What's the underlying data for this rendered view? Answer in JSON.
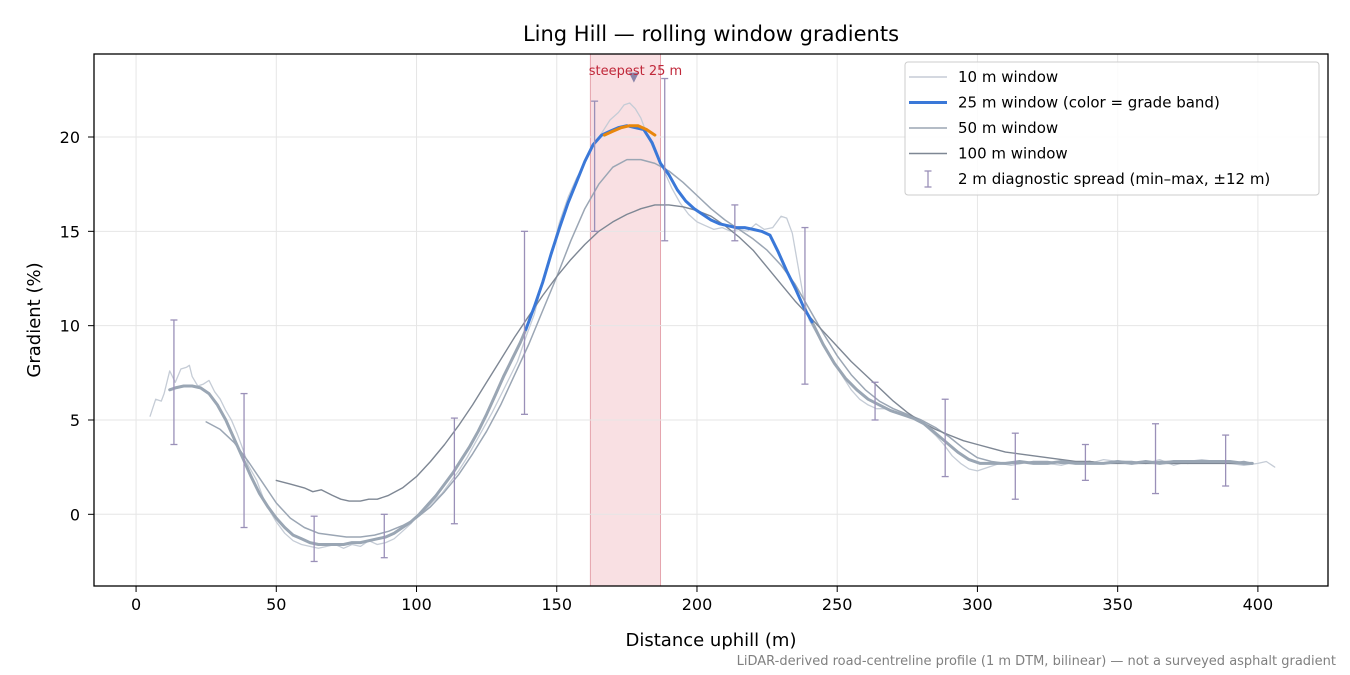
{
  "chart_data": {
    "type": "line",
    "title": "Ling Hill — rolling window gradients",
    "xlabel": "Distance uphill (m)",
    "ylabel": "Gradient (%)",
    "xlim": [
      -15,
      425
    ],
    "ylim": [
      -3.8,
      24.4
    ],
    "xticks": [
      0,
      50,
      100,
      150,
      200,
      250,
      300,
      350,
      400
    ],
    "yticks": [
      0,
      5,
      10,
      15,
      20
    ],
    "grid": true,
    "legend_position": "upper right",
    "footnote": "LiDAR-derived road-centreline profile (1 m DTM, bilinear) — not a surveyed asphalt gradient",
    "highlight": {
      "x_start": 162,
      "x_end": 187,
      "marker_x": 177.5,
      "marker_y": 23.2,
      "label": "steepest 25 m",
      "color": "#f4c7cc"
    },
    "series": [
      {
        "name": "10 m window",
        "color": "#c5ccd6",
        "x": [
          5,
          7,
          9,
          10,
          12,
          14,
          16,
          18,
          19,
          20,
          22,
          24,
          26,
          28,
          30,
          32,
          34,
          36,
          38,
          40,
          43,
          46,
          50,
          53,
          56,
          59,
          62,
          65,
          68,
          71,
          74,
          77,
          80,
          83,
          86,
          89,
          92,
          95,
          98,
          100,
          103,
          106,
          109,
          112,
          115,
          118,
          121,
          124,
          127,
          130,
          133,
          136,
          139,
          142,
          145,
          148,
          151,
          154,
          157,
          160,
          163,
          166,
          169,
          172,
          174,
          176,
          178,
          180,
          182,
          185,
          188,
          191,
          194,
          197,
          200,
          203,
          206,
          209,
          212,
          215,
          218,
          221,
          224,
          227,
          230,
          232,
          234,
          236,
          238,
          240,
          243,
          246,
          249,
          252,
          255,
          258,
          261,
          264,
          267,
          270,
          273,
          276,
          279,
          282,
          285,
          288,
          291,
          294,
          297,
          300,
          304,
          308,
          312,
          316,
          320,
          325,
          330,
          335,
          340,
          345,
          350,
          355,
          360,
          365,
          370,
          375,
          380,
          385,
          390,
          395,
          400,
          403,
          406
        ],
        "y": [
          5.2,
          6.1,
          6.0,
          6.4,
          7.6,
          7.0,
          7.7,
          7.8,
          7.9,
          7.3,
          6.8,
          6.9,
          7.1,
          6.5,
          6.1,
          5.5,
          5.0,
          4.3,
          3.5,
          2.6,
          1.8,
          0.6,
          -0.4,
          -1.0,
          -1.4,
          -1.6,
          -1.7,
          -1.8,
          -1.7,
          -1.6,
          -1.8,
          -1.6,
          -1.7,
          -1.4,
          -1.6,
          -1.5,
          -1.3,
          -0.9,
          -0.5,
          -0.1,
          0.2,
          0.7,
          1.1,
          1.7,
          2.3,
          3.0,
          3.8,
          4.6,
          5.4,
          6.3,
          7.2,
          8.1,
          9.4,
          10.6,
          12.4,
          13.8,
          15.5,
          16.8,
          17.8,
          18.6,
          19.6,
          20.2,
          20.9,
          21.3,
          21.7,
          21.8,
          21.5,
          21.0,
          20.2,
          19.2,
          18.3,
          17.3,
          16.5,
          15.9,
          15.5,
          15.3,
          15.1,
          15.2,
          15.0,
          15.1,
          15.0,
          15.4,
          15.1,
          15.2,
          15.8,
          15.7,
          14.9,
          13.2,
          11.5,
          10.3,
          9.5,
          8.8,
          8.0,
          7.3,
          6.6,
          6.1,
          5.8,
          5.6,
          5.6,
          5.4,
          5.3,
          5.1,
          5.0,
          4.6,
          4.2,
          3.7,
          3.1,
          2.7,
          2.4,
          2.3,
          2.5,
          2.7,
          2.6,
          2.7,
          2.8,
          2.7,
          2.6,
          2.8,
          2.7,
          2.9,
          2.8,
          2.8,
          2.7,
          2.9,
          2.6,
          2.8,
          2.9,
          2.8,
          2.7,
          2.6,
          2.7,
          2.8,
          2.5
        ]
      },
      {
        "name": "25 m window (color = grade band)",
        "color": "#3a78d8",
        "x": [
          139,
          142,
          145,
          148,
          151,
          154,
          157,
          160,
          163,
          166,
          169,
          172,
          175,
          178,
          181,
          184,
          187,
          190,
          193,
          196,
          199,
          202,
          205,
          208,
          211,
          214,
          217,
          220,
          223,
          226,
          229,
          232,
          235,
          238,
          241
        ],
        "y": [
          9.8,
          11.0,
          12.3,
          13.8,
          15.2,
          16.5,
          17.6,
          18.7,
          19.6,
          20.1,
          20.3,
          20.5,
          20.6,
          20.5,
          20.4,
          19.7,
          18.6,
          18.0,
          17.2,
          16.6,
          16.2,
          15.9,
          15.6,
          15.4,
          15.3,
          15.2,
          15.2,
          15.1,
          15.0,
          14.8,
          13.9,
          12.9,
          12.0,
          11.0,
          10.2
        ]
      },
      {
        "name": "25 m window orange band",
        "color": "#e8870c",
        "x": [
          167,
          170,
          173,
          176,
          179,
          182,
          185
        ],
        "y": [
          20.1,
          20.3,
          20.5,
          20.6,
          20.6,
          20.4,
          20.1
        ]
      },
      {
        "name": "25 m window gray segments",
        "color": "#9aa6b4",
        "x": [
          12,
          14,
          17,
          20,
          23,
          26,
          29,
          32,
          35,
          38,
          41,
          44,
          47,
          50,
          53,
          56,
          59,
          62,
          65,
          68,
          71,
          74,
          77,
          80,
          83,
          86,
          89,
          92,
          95,
          98,
          101,
          104,
          107,
          110,
          113,
          116,
          119,
          122,
          125,
          128,
          131,
          134,
          137,
          139
        ],
        "y": [
          6.6,
          6.7,
          6.8,
          6.8,
          6.7,
          6.4,
          5.8,
          5.0,
          4.0,
          3.0,
          2.0,
          1.1,
          0.4,
          -0.2,
          -0.7,
          -1.1,
          -1.3,
          -1.5,
          -1.6,
          -1.6,
          -1.6,
          -1.6,
          -1.5,
          -1.5,
          -1.4,
          -1.3,
          -1.2,
          -1.0,
          -0.7,
          -0.4,
          0.0,
          0.5,
          1.0,
          1.6,
          2.2,
          2.9,
          3.6,
          4.4,
          5.3,
          6.3,
          7.3,
          8.2,
          9.1,
          9.8
        ]
      },
      {
        "name": "25 m window gray tail",
        "color": "#9aa6b4",
        "x": [
          241,
          245,
          249,
          253,
          257,
          261,
          265,
          269,
          273,
          277,
          281,
          285,
          289,
          293,
          297,
          301,
          305,
          310,
          315,
          320,
          325,
          330,
          335,
          340,
          345,
          350,
          355,
          360,
          365,
          370,
          375,
          380,
          385,
          390,
          395,
          398
        ],
        "y": [
          10.2,
          9.0,
          8.0,
          7.2,
          6.6,
          6.1,
          5.8,
          5.5,
          5.3,
          5.1,
          4.8,
          4.3,
          3.8,
          3.3,
          2.9,
          2.7,
          2.7,
          2.7,
          2.8,
          2.7,
          2.7,
          2.8,
          2.7,
          2.7,
          2.7,
          2.8,
          2.7,
          2.8,
          2.7,
          2.8,
          2.8,
          2.8,
          2.8,
          2.8,
          2.7,
          2.7
        ]
      },
      {
        "name": "50 m window",
        "color": "#9ba6b4",
        "x": [
          25,
          30,
          35,
          40,
          45,
          50,
          55,
          60,
          65,
          70,
          75,
          80,
          85,
          90,
          95,
          100,
          105,
          110,
          115,
          120,
          125,
          130,
          135,
          140,
          145,
          150,
          155,
          160,
          165,
          170,
          175,
          180,
          185,
          190,
          195,
          200,
          205,
          210,
          215,
          220,
          225,
          230,
          235,
          240,
          245,
          250,
          255,
          260,
          265,
          270,
          275,
          280,
          285,
          290,
          295,
          300,
          305,
          310,
          315,
          320,
          325,
          330,
          335,
          340,
          345,
          350,
          355,
          360,
          365,
          370,
          375,
          380,
          385,
          390,
          395,
          398
        ],
        "y": [
          4.9,
          4.5,
          3.8,
          2.8,
          1.7,
          0.6,
          -0.2,
          -0.7,
          -1.0,
          -1.1,
          -1.2,
          -1.2,
          -1.1,
          -0.9,
          -0.6,
          -0.2,
          0.4,
          1.2,
          2.1,
          3.2,
          4.4,
          5.8,
          7.4,
          9.0,
          10.8,
          12.6,
          14.5,
          16.2,
          17.5,
          18.4,
          18.8,
          18.8,
          18.6,
          18.2,
          17.6,
          16.9,
          16.2,
          15.6,
          15.1,
          14.6,
          14.0,
          13.2,
          12.2,
          10.9,
          9.6,
          8.4,
          7.4,
          6.6,
          6.0,
          5.6,
          5.3,
          5.0,
          4.6,
          4.1,
          3.5,
          3.0,
          2.8,
          2.7,
          2.7,
          2.8,
          2.8,
          2.7,
          2.7,
          2.8,
          2.7,
          2.8,
          2.8,
          2.7,
          2.8,
          2.8,
          2.7,
          2.8,
          2.8,
          2.7,
          2.8,
          2.7
        ]
      },
      {
        "name": "100 m window",
        "color": "#7e8794",
        "x": [
          50,
          55,
          60,
          63,
          66,
          70,
          73,
          76,
          80,
          83,
          86,
          90,
          95,
          100,
          105,
          110,
          115,
          120,
          125,
          130,
          135,
          140,
          145,
          150,
          155,
          160,
          165,
          170,
          175,
          180,
          185,
          190,
          195,
          200,
          205,
          210,
          215,
          220,
          225,
          230,
          235,
          240,
          245,
          250,
          255,
          260,
          265,
          270,
          275,
          280,
          285,
          290,
          295,
          300,
          305,
          310,
          315,
          320,
          325,
          330,
          335,
          340,
          345,
          350,
          355,
          360,
          365,
          370,
          375,
          380,
          385,
          390,
          395,
          398
        ],
        "y": [
          1.8,
          1.6,
          1.4,
          1.2,
          1.3,
          1.0,
          0.8,
          0.7,
          0.7,
          0.8,
          0.8,
          1.0,
          1.4,
          2.0,
          2.8,
          3.7,
          4.7,
          5.8,
          7.0,
          8.2,
          9.4,
          10.5,
          11.6,
          12.6,
          13.5,
          14.3,
          15.0,
          15.5,
          15.9,
          16.2,
          16.4,
          16.4,
          16.3,
          16.1,
          15.8,
          15.3,
          14.7,
          14.0,
          13.1,
          12.2,
          11.3,
          10.5,
          9.7,
          8.9,
          8.1,
          7.4,
          6.7,
          6.0,
          5.4,
          4.9,
          4.5,
          4.2,
          3.9,
          3.7,
          3.5,
          3.3,
          3.2,
          3.1,
          3.0,
          2.9,
          2.8,
          2.8,
          2.7,
          2.7,
          2.7,
          2.7,
          2.7,
          2.7,
          2.7,
          2.7,
          2.7,
          2.7,
          2.7,
          2.7
        ]
      }
    ],
    "error_bars": {
      "name": "2 m diagnostic spread (min–max, ±12 m)",
      "color": "#9a90b8",
      "points": [
        {
          "x": 13.5,
          "low": 3.7,
          "high": 10.3
        },
        {
          "x": 38.5,
          "low": -0.7,
          "high": 6.4
        },
        {
          "x": 63.5,
          "low": -2.5,
          "high": -0.1
        },
        {
          "x": 88.5,
          "low": -2.3,
          "high": 0.0
        },
        {
          "x": 113.5,
          "low": -0.5,
          "high": 5.1
        },
        {
          "x": 138.5,
          "low": 5.3,
          "high": 15.0
        },
        {
          "x": 163.5,
          "low": 15.0,
          "high": 21.9
        },
        {
          "x": 188.5,
          "low": 14.5,
          "high": 23.1
        },
        {
          "x": 213.5,
          "low": 14.5,
          "high": 16.4
        },
        {
          "x": 238.5,
          "low": 6.9,
          "high": 15.2
        },
        {
          "x": 263.5,
          "low": 5.0,
          "high": 7.0
        },
        {
          "x": 288.5,
          "low": 2.0,
          "high": 6.1
        },
        {
          "x": 313.5,
          "low": 0.8,
          "high": 4.3
        },
        {
          "x": 338.5,
          "low": 1.8,
          "high": 3.7
        },
        {
          "x": 363.5,
          "low": 1.1,
          "high": 4.8
        },
        {
          "x": 388.5,
          "low": 1.5,
          "high": 4.2
        }
      ]
    },
    "legend": [
      {
        "label": "10 m window",
        "color": "#c5ccd6",
        "kind": "line"
      },
      {
        "label": "25 m window (color = grade band)",
        "color": "#3a78d8",
        "kind": "line"
      },
      {
        "label": "50 m window",
        "color": "#9ba6b4",
        "kind": "line"
      },
      {
        "label": "100 m window",
        "color": "#7e8794",
        "kind": "line"
      },
      {
        "label": "2 m diagnostic spread (min–max, ±12 m)",
        "color": "#9a90b8",
        "kind": "errorbar"
      }
    ]
  }
}
